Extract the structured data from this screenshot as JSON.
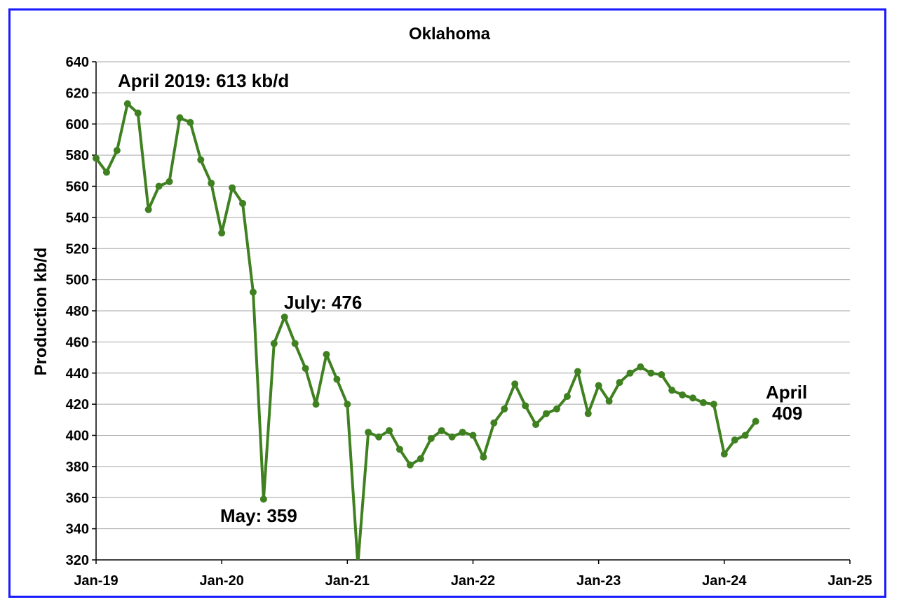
{
  "chart_data": {
    "type": "line",
    "title": "Oklahoma",
    "xlabel": "",
    "ylabel": "Production kb/d",
    "ylim": [
      320,
      640
    ],
    "yticks": [
      320,
      340,
      360,
      380,
      400,
      420,
      440,
      460,
      480,
      500,
      520,
      540,
      560,
      580,
      600,
      620,
      640
    ],
    "xticks": [
      "Jan-19",
      "Jan-20",
      "Jan-21",
      "Jan-22",
      "Jan-23",
      "Jan-24",
      "Jan-25"
    ],
    "x_start": "Jan-19",
    "x_end": "Jan-25",
    "grid": "horizontal",
    "color": "#3f8020",
    "series": [
      {
        "x": [
          "2019-01",
          "2019-02",
          "2019-03",
          "2019-04",
          "2019-05",
          "2019-06",
          "2019-07",
          "2019-08",
          "2019-09",
          "2019-10",
          "2019-11",
          "2019-12",
          "2020-01",
          "2020-02",
          "2020-03",
          "2020-04",
          "2020-05",
          "2020-06",
          "2020-07",
          "2020-08",
          "2020-09",
          "2020-10",
          "2020-11",
          "2020-12",
          "2021-01",
          "2021-02",
          "2021-03",
          "2021-04",
          "2021-05",
          "2021-06",
          "2021-07",
          "2021-08",
          "2021-09",
          "2021-10",
          "2021-11",
          "2021-12",
          "2022-01",
          "2022-02",
          "2022-03",
          "2022-04",
          "2022-05",
          "2022-06",
          "2022-07",
          "2022-08",
          "2022-09",
          "2022-10",
          "2022-11",
          "2022-12",
          "2023-01",
          "2023-02",
          "2023-03",
          "2023-04",
          "2023-05",
          "2023-06",
          "2023-07",
          "2023-08",
          "2023-09",
          "2023-10",
          "2023-11",
          "2023-12",
          "2024-01",
          "2024-02",
          "2024-03",
          "2024-04"
        ],
        "values": [
          578,
          569,
          583,
          613,
          607,
          545,
          560,
          563,
          604,
          601,
          577,
          562,
          530,
          559,
          549,
          492,
          359,
          459,
          476,
          459,
          443,
          420,
          452,
          436,
          420,
          317,
          402,
          399,
          403,
          391,
          381,
          385,
          398,
          403,
          399,
          402,
          400,
          386,
          408,
          417,
          433,
          419,
          407,
          414,
          417,
          425,
          441,
          414,
          432,
          422,
          434,
          440,
          444,
          440,
          439,
          429,
          426,
          424,
          421,
          420,
          388,
          397,
          400,
          409
        ]
      }
    ],
    "annotations": [
      {
        "text": "April 2019: 613 kb/d"
      },
      {
        "text": "July: 476"
      },
      {
        "text": "May: 359"
      },
      {
        "text": "April"
      },
      {
        "text": "409"
      }
    ]
  }
}
